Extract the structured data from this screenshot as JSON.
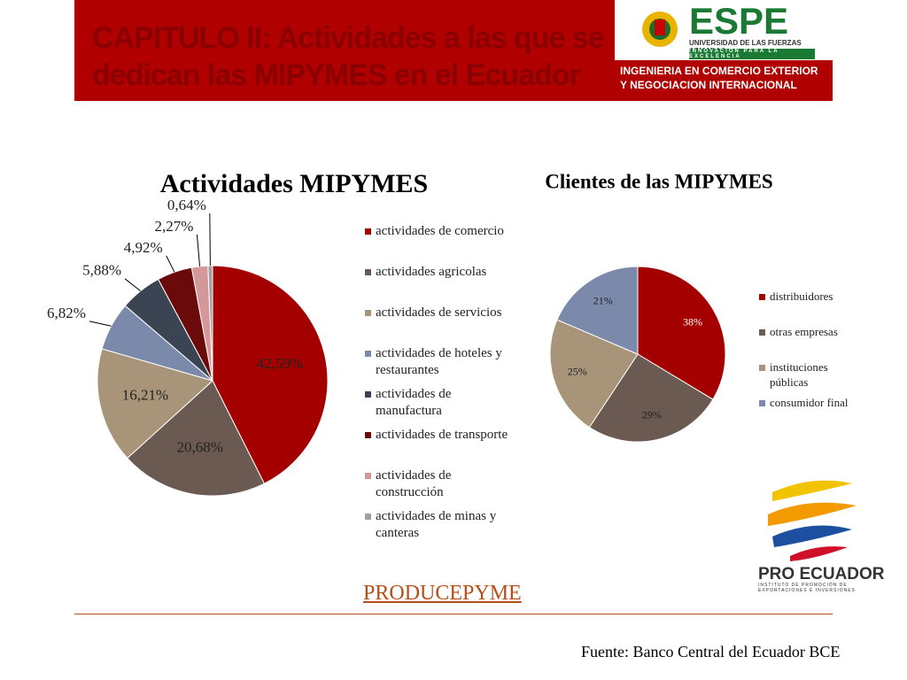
{
  "header": {
    "title_lines": [
      "CAPITULO II: Actividades a las que se",
      "dedican las MIPYMES en el Ecuador"
    ],
    "logo_name": "ESPE",
    "logo_university": "UNIVERSIDAD DE LAS FUERZAS ARMADAS",
    "logo_motto": "INNOVACIÓN PARA LA EXCELENCIA",
    "program_lines": [
      "INGENIERIA EN COMERCIO EXTERIOR",
      "Y NEGOCIACION INTERNACIONAL"
    ]
  },
  "chart_data": [
    {
      "type": "pie",
      "title": "Actividades MIPYMES",
      "categories": [
        "actividades de comercio",
        "actividades agricolas",
        "actividades de servicios",
        "actividades de hoteles y restaurantes",
        "actividades de manufactura",
        "actividades de transporte",
        "actividades de construcción",
        "actividades de minas y canteras"
      ],
      "values": [
        42.59,
        20.68,
        16.21,
        6.82,
        5.88,
        4.92,
        2.27,
        0.64
      ],
      "value_labels": [
        "42,59%",
        "20,68%",
        "16,21%",
        "6,82%",
        "5,88%",
        "4,92%",
        "2,27%",
        "0,64%"
      ],
      "colors": [
        "#a50000",
        "#6b5a52",
        "#a89478",
        "#7b8aab",
        "#3a4452",
        "#6b0a0a",
        "#d4979a",
        "#a0a0a0"
      ],
      "legend": "right"
    },
    {
      "type": "pie",
      "title": "Clientes de las MIPYMES",
      "categories": [
        "distribuidores",
        "otras empresas",
        "instituciones públicas",
        "consumidor final"
      ],
      "values": [
        38,
        29,
        25,
        21
      ],
      "value_labels": [
        "38%",
        "29%",
        "25%",
        "21%"
      ],
      "colors": [
        "#a50000",
        "#6b5a52",
        "#a89478",
        "#7b8aab"
      ],
      "legend": "right"
    }
  ],
  "link": "PRODUCEPYME",
  "proecuador": {
    "name": "PRO ECUADOR",
    "subtitle_lines": [
      "INSTITUTO DE PROMOCIÓN DE",
      "EXPORTACIONES E INVERSIONES"
    ]
  },
  "source": "Fuente: Banco Central del Ecuador BCE"
}
